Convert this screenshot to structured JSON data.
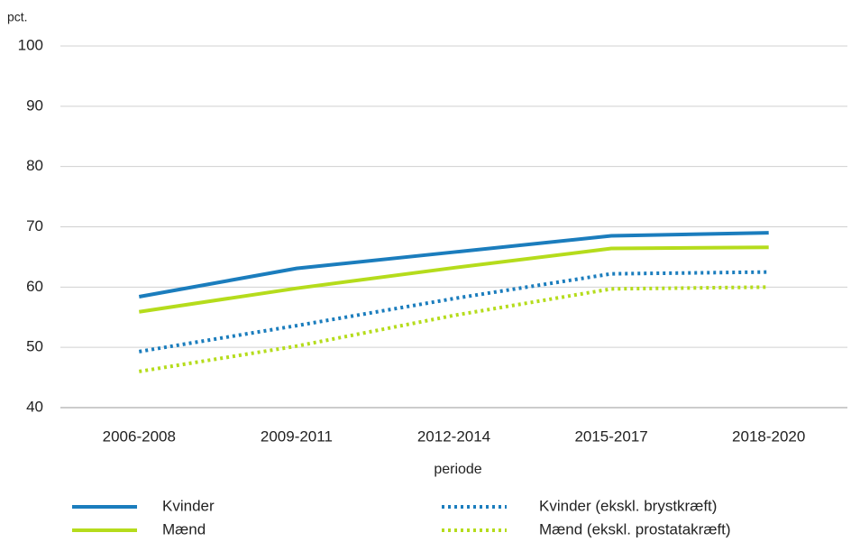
{
  "chart_data": {
    "type": "line",
    "y_axis_label": "pct.",
    "x_axis_label": "periode",
    "categories": [
      "2006-2008",
      "2009-2011",
      "2012-2014",
      "2015-2017",
      "2018-2020"
    ],
    "series": [
      {
        "name": "Kvinder",
        "color": "#1b7dbd",
        "style": "solid",
        "values": [
          58.4,
          63.1,
          65.8,
          68.5,
          69.0
        ]
      },
      {
        "name": "Mænd",
        "color": "#b5dc1c",
        "style": "solid",
        "values": [
          55.9,
          59.8,
          63.2,
          66.4,
          66.6
        ]
      },
      {
        "name": "Kvinder (ekskl. brystkræft)",
        "color": "#1b7dbd",
        "style": "dotted",
        "values": [
          49.3,
          53.6,
          58.1,
          62.2,
          62.5
        ]
      },
      {
        "name": "Mænd (ekskl. prostatakræft)",
        "color": "#b5dc1c",
        "style": "dotted",
        "values": [
          46.0,
          50.2,
          55.3,
          59.7,
          60.0
        ]
      }
    ],
    "ylim": [
      40,
      100
    ],
    "yticks": [
      40,
      50,
      60,
      70,
      80,
      90,
      100
    ],
    "grid": true,
    "legend": "bottom"
  }
}
